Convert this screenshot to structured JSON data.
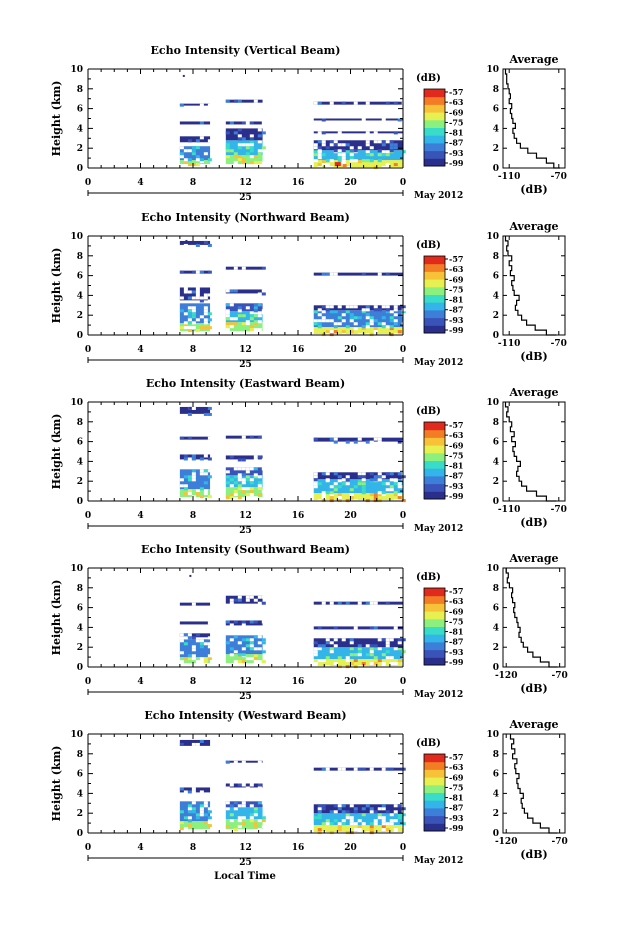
{
  "figure": {
    "xlabel": "Local Time",
    "date_day": "25",
    "date_month": "May 2012"
  },
  "colorbar": {
    "unit": "(dB)",
    "ticks": [
      "-57",
      "-63",
      "-69",
      "-75",
      "-81",
      "-87",
      "-93",
      "-99"
    ],
    "colors": [
      "#2b2f8c",
      "#3a53b8",
      "#3d7fd8",
      "#33b5ea",
      "#39dcc8",
      "#8cf07e",
      "#e6f050",
      "#f7c238",
      "#f37d24",
      "#e02a1e"
    ]
  },
  "chart_data": [
    {
      "type": "heatmap",
      "title": "Echo Intensity (Vertical Beam)",
      "ylabel": "Height (km)",
      "xlim": [
        0,
        24
      ],
      "ylim": [
        0,
        10
      ],
      "xticks": [
        "0",
        "4",
        "8",
        "12",
        "16",
        "20",
        "0"
      ],
      "yticks": [
        "0",
        "2",
        "4",
        "6",
        "8",
        "10"
      ],
      "segments": [
        {
          "x": [
            7,
            9.3
          ],
          "blocks": [
            [
              0.4,
              0.8,
              5
            ],
            [
              0.8,
              2.2,
              2
            ],
            [
              2.6,
              3.2,
              0
            ],
            [
              4.4,
              4.7,
              0
            ],
            [
              6.3,
              6.5,
              0
            ]
          ]
        },
        {
          "x": [
            10.5,
            13.3
          ],
          "blocks": [
            [
              0.4,
              1.3,
              5
            ],
            [
              1.3,
              2.8,
              3
            ],
            [
              2.8,
              4.0,
              0
            ],
            [
              4.4,
              4.7,
              0
            ],
            [
              6.6,
              6.9,
              0
            ]
          ]
        },
        {
          "x": [
            17.2,
            24
          ],
          "blocks": [
            [
              0.1,
              0.8,
              6
            ],
            [
              0.8,
              1.8,
              3
            ],
            [
              1.8,
              2.8,
              0
            ],
            [
              3.5,
              3.7,
              0
            ],
            [
              4.8,
              5.0,
              0
            ],
            [
              6.4,
              6.7,
              0
            ]
          ]
        }
      ],
      "speckles": [
        [
          7.3,
          9.3
        ]
      ],
      "avg": {
        "title": "Average",
        "xlabel": "(dB)",
        "xticks": [
          "-110",
          "-70"
        ],
        "xtick_values": [
          -110,
          -70
        ],
        "xlim": [
          -115,
          -65
        ],
        "yticks": [
          "0",
          "2",
          "4",
          "6",
          "8",
          "10"
        ],
        "h": [
          0,
          0.5,
          1,
          1.5,
          2,
          2.5,
          3,
          3.5,
          4,
          4.5,
          5,
          5.5,
          6,
          6.5,
          7,
          7.5,
          8,
          8.5,
          9,
          9.5,
          10
        ],
        "db": [
          -69,
          -74,
          -80,
          -88,
          -95,
          -101,
          -104,
          -106,
          -107,
          -105,
          -107,
          -108,
          -109,
          -108,
          -110,
          -109,
          -110,
          -111,
          -112,
          -112,
          -113
        ]
      }
    },
    {
      "type": "heatmap",
      "title": "Echo Intensity (Northward Beam)",
      "ylabel": "Height (km)",
      "xlim": [
        0,
        24
      ],
      "ylim": [
        0,
        10
      ],
      "xticks": [
        "0",
        "4",
        "8",
        "12",
        "16",
        "20",
        "0"
      ],
      "yticks": [
        "0",
        "2",
        "4",
        "6",
        "8",
        "10"
      ],
      "segments": [
        {
          "x": [
            7,
            9.3
          ],
          "blocks": [
            [
              0.4,
              1.2,
              5
            ],
            [
              1.2,
              3.2,
              2
            ],
            [
              3.5,
              4.8,
              0
            ],
            [
              6.2,
              6.5,
              0
            ],
            [
              9.1,
              9.5,
              0
            ]
          ]
        },
        {
          "x": [
            10.5,
            13.3
          ],
          "blocks": [
            [
              0.4,
              1.3,
              5
            ],
            [
              1.3,
              2.4,
              3
            ],
            [
              2.4,
              3.2,
              1
            ],
            [
              4.2,
              4.6,
              0
            ],
            [
              6.6,
              6.9,
              0
            ]
          ]
        },
        {
          "x": [
            17.2,
            24
          ],
          "blocks": [
            [
              0.1,
              0.8,
              6
            ],
            [
              0.8,
              2.5,
              2
            ],
            [
              2.5,
              3.0,
              0
            ],
            [
              6.0,
              6.3,
              0
            ]
          ]
        }
      ],
      "speckles": [
        [
          7.5,
          9.5
        ]
      ],
      "avg": {
        "title": "Average",
        "xlabel": "(dB)",
        "xticks": [
          "-110",
          "-70"
        ],
        "xtick_values": [
          -110,
          -70
        ],
        "xlim": [
          -115,
          -65
        ],
        "yticks": [
          "0",
          "2",
          "4",
          "6",
          "8",
          "10"
        ],
        "h": [
          0,
          0.5,
          1,
          1.5,
          2,
          2.5,
          3,
          3.5,
          4,
          4.5,
          5,
          5.5,
          6,
          6.5,
          7,
          7.5,
          8,
          8.5,
          9,
          9.5,
          10
        ],
        "db": [
          -72,
          -80,
          -89,
          -96,
          -100,
          -103,
          -105,
          -104,
          -102,
          -106,
          -107,
          -108,
          -106,
          -109,
          -108,
          -110,
          -108,
          -111,
          -112,
          -111,
          -113
        ]
      }
    },
    {
      "type": "heatmap",
      "title": "Echo Intensity (Eastward Beam)",
      "ylabel": "Height (km)",
      "xlim": [
        0,
        24
      ],
      "ylim": [
        0,
        10
      ],
      "xticks": [
        "0",
        "4",
        "8",
        "12",
        "16",
        "20",
        "0"
      ],
      "yticks": [
        "0",
        "2",
        "4",
        "6",
        "8",
        "10"
      ],
      "segments": [
        {
          "x": [
            7,
            9.3
          ],
          "blocks": [
            [
              0.4,
              1.2,
              5
            ],
            [
              1.2,
              3.2,
              2
            ],
            [
              4.2,
              4.7,
              0
            ],
            [
              6.2,
              6.5,
              0
            ],
            [
              8.8,
              9.5,
              0
            ]
          ]
        },
        {
          "x": [
            10.5,
            13.3
          ],
          "blocks": [
            [
              0.4,
              1.4,
              5
            ],
            [
              1.4,
              2.6,
              3
            ],
            [
              2.6,
              3.4,
              1
            ],
            [
              4.2,
              4.6,
              0
            ],
            [
              6.3,
              6.6,
              0
            ]
          ]
        },
        {
          "x": [
            17.2,
            24
          ],
          "blocks": [
            [
              0.1,
              0.8,
              6
            ],
            [
              0.8,
              2.2,
              3
            ],
            [
              2.2,
              2.9,
              0
            ],
            [
              6.0,
              6.4,
              0
            ]
          ]
        }
      ],
      "speckles": [
        [
          7.8,
          9.4
        ]
      ],
      "avg": {
        "title": "Average",
        "xlabel": "(dB)",
        "xticks": [
          "-110",
          "-70"
        ],
        "xtick_values": [
          -110,
          -70
        ],
        "xlim": [
          -115,
          -65
        ],
        "yticks": [
          "0",
          "2",
          "4",
          "6",
          "8",
          "10"
        ],
        "h": [
          0,
          0.5,
          1,
          1.5,
          2,
          2.5,
          3,
          3.5,
          4,
          4.5,
          5,
          5.5,
          6,
          6.5,
          7,
          7.5,
          8,
          8.5,
          9,
          9.5,
          10
        ],
        "db": [
          -72,
          -80,
          -88,
          -96,
          -100,
          -102,
          -104,
          -103,
          -101,
          -104,
          -106,
          -107,
          -105,
          -108,
          -106,
          -109,
          -108,
          -110,
          -112,
          -111,
          -113
        ]
      }
    },
    {
      "type": "heatmap",
      "title": "Echo Intensity (Southward Beam)",
      "ylabel": "Height (km)",
      "xlim": [
        0,
        24
      ],
      "ylim": [
        0,
        10
      ],
      "xticks": [
        "0",
        "4",
        "8",
        "12",
        "16",
        "20",
        "0"
      ],
      "yticks": [
        "0",
        "2",
        "4",
        "6",
        "8",
        "10"
      ],
      "segments": [
        {
          "x": [
            7,
            9.3
          ],
          "blocks": [
            [
              0.4,
              1.0,
              5
            ],
            [
              1.0,
              2.8,
              2
            ],
            [
              3.0,
              3.4,
              0
            ],
            [
              4.3,
              4.6,
              0
            ],
            [
              6.2,
              6.5,
              0
            ]
          ]
        },
        {
          "x": [
            10.5,
            13.3
          ],
          "blocks": [
            [
              0.4,
              1.3,
              5
            ],
            [
              1.3,
              3.2,
              2
            ],
            [
              4.2,
              4.7,
              0
            ],
            [
              6.4,
              7.2,
              0
            ]
          ]
        },
        {
          "x": [
            17.2,
            24
          ],
          "blocks": [
            [
              0.1,
              0.8,
              6
            ],
            [
              0.8,
              2.0,
              3
            ],
            [
              2.0,
              2.9,
              0
            ],
            [
              3.8,
              4.1,
              0
            ],
            [
              6.3,
              6.6,
              0
            ]
          ]
        }
      ],
      "speckles": [
        [
          7.8,
          9.2
        ]
      ],
      "avg": {
        "title": "Average",
        "xlabel": "(dB)",
        "xticks": [
          "-120",
          "-70"
        ],
        "xtick_values": [
          -120,
          -70
        ],
        "xlim": [
          -123,
          -65
        ],
        "yticks": [
          "0",
          "2",
          "4",
          "6",
          "8",
          "10"
        ],
        "h": [
          0,
          0.5,
          1,
          1.5,
          2,
          2.5,
          3,
          3.5,
          4,
          4.5,
          5,
          5.5,
          6,
          6.5,
          7,
          7.5,
          8,
          8.5,
          9,
          9.5,
          10
        ],
        "db": [
          -72,
          -80,
          -88,
          -95,
          -100,
          -104,
          -106,
          -108,
          -107,
          -109,
          -110,
          -112,
          -113,
          -112,
          -114,
          -115,
          -114,
          -117,
          -119,
          -118,
          -120
        ]
      }
    },
    {
      "type": "heatmap",
      "title": "Echo Intensity (Westward Beam)",
      "ylabel": "Height (km)",
      "xlim": [
        0,
        24
      ],
      "ylim": [
        0,
        10
      ],
      "xticks": [
        "0",
        "4",
        "8",
        "12",
        "16",
        "20",
        "0"
      ],
      "yticks": [
        "0",
        "2",
        "4",
        "6",
        "8",
        "10"
      ],
      "segments": [
        {
          "x": [
            7,
            9.3
          ],
          "blocks": [
            [
              0.4,
              1.2,
              5
            ],
            [
              1.2,
              3.2,
              2
            ],
            [
              4.1,
              4.6,
              0
            ],
            [
              8.8,
              9.4,
              0
            ]
          ]
        },
        {
          "x": [
            10.5,
            13.3
          ],
          "blocks": [
            [
              0.4,
              1.4,
              5
            ],
            [
              1.4,
              2.6,
              3
            ],
            [
              2.6,
              3.2,
              1
            ],
            [
              4.6,
              5.0,
              0
            ],
            [
              7.1,
              7.3,
              0
            ]
          ]
        },
        {
          "x": [
            17.2,
            24
          ],
          "blocks": [
            [
              0.1,
              0.8,
              6
            ],
            [
              0.8,
              2.0,
              3
            ],
            [
              2.0,
              2.9,
              0
            ],
            [
              6.3,
              6.6,
              0
            ]
          ]
        }
      ],
      "speckles": [
        [
          7.6,
          9.2
        ]
      ],
      "avg": {
        "title": "Average",
        "xlabel": "(dB)",
        "xticks": [
          "-120",
          "-70"
        ],
        "xtick_values": [
          -120,
          -70
        ],
        "xlim": [
          -123,
          -65
        ],
        "yticks": [
          "0",
          "2",
          "4",
          "6",
          "8",
          "10"
        ],
        "h": [
          0,
          0.5,
          1,
          1.5,
          2,
          2.5,
          3,
          3.5,
          4,
          4.5,
          5,
          5.5,
          6,
          6.5,
          7,
          7.5,
          8,
          8.5,
          9,
          9.5,
          10
        ],
        "db": [
          -72,
          -80,
          -88,
          -95,
          -100,
          -103,
          -105,
          -106,
          -104,
          -107,
          -109,
          -110,
          -108,
          -111,
          -112,
          -110,
          -114,
          -112,
          -115,
          -113,
          -116
        ]
      }
    }
  ]
}
